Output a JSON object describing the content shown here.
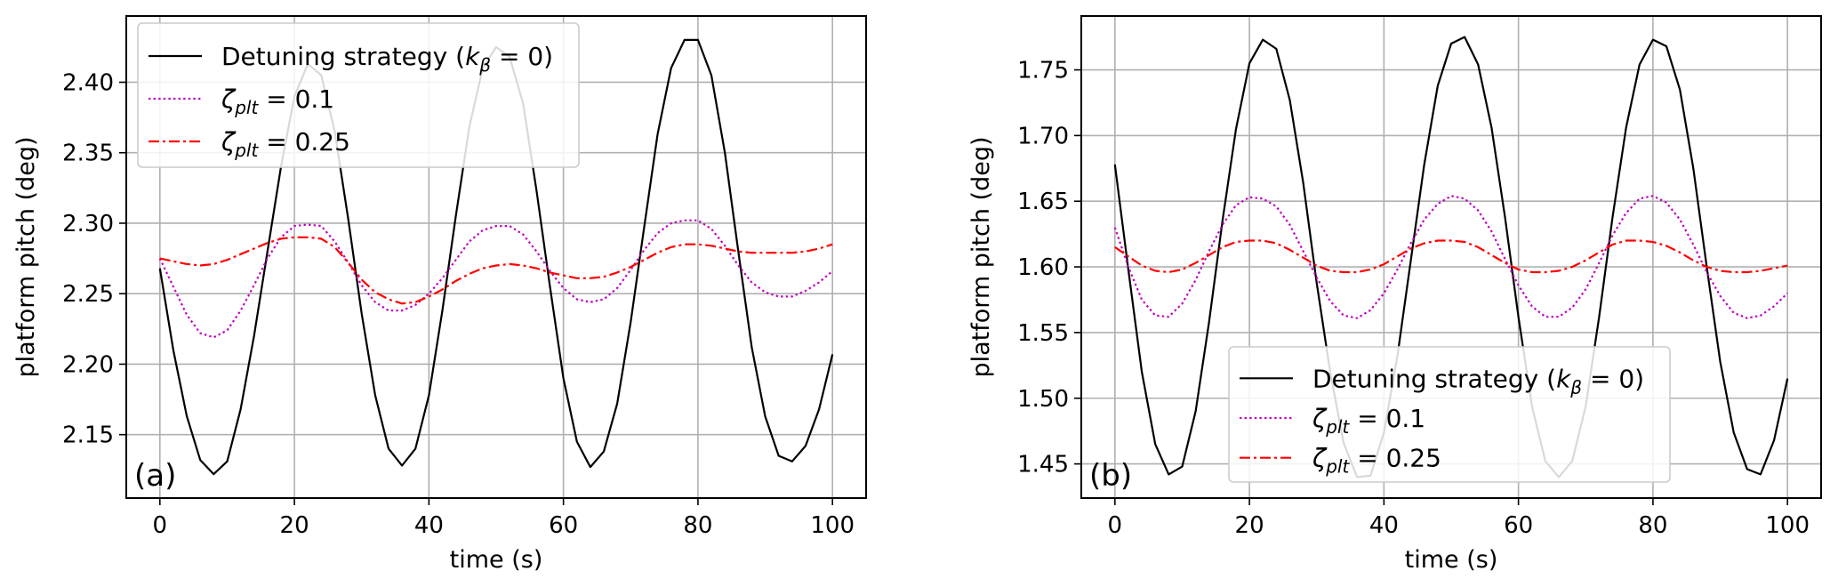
{
  "chart_data": [
    {
      "type": "line",
      "panel_label": "(a)",
      "xlabel": "time (s)",
      "ylabel": "platform pitch (deg)",
      "xlim": [
        -5,
        105
      ],
      "ylim": [
        2.105,
        2.447
      ],
      "xticks": [
        0,
        20,
        40,
        60,
        80,
        100
      ],
      "yticks": [
        2.15,
        2.2,
        2.25,
        2.3,
        2.35,
        2.4
      ],
      "grid": true,
      "legend_position": "upper-left",
      "series": [
        {
          "name_main": "Detuning strategy (",
          "name_sym": "k",
          "name_sub": "β",
          "name_tail": " = 0)",
          "color": "#000000",
          "dash": "solid",
          "x": [
            0,
            2,
            4,
            6,
            8,
            10,
            12,
            14,
            16,
            18,
            20,
            22,
            24,
            26,
            28,
            30,
            32,
            34,
            36,
            38,
            40,
            42,
            44,
            46,
            48,
            50,
            52,
            54,
            56,
            58,
            60,
            62,
            64,
            66,
            68,
            70,
            72,
            74,
            76,
            78,
            80,
            82,
            84,
            86,
            88,
            90,
            92,
            94,
            96,
            98,
            100
          ],
          "y": [
            2.268,
            2.21,
            2.163,
            2.132,
            2.122,
            2.131,
            2.168,
            2.22,
            2.28,
            2.34,
            2.39,
            2.413,
            2.405,
            2.365,
            2.303,
            2.236,
            2.178,
            2.14,
            2.128,
            2.14,
            2.178,
            2.238,
            2.305,
            2.368,
            2.41,
            2.425,
            2.418,
            2.385,
            2.323,
            2.255,
            2.19,
            2.145,
            2.127,
            2.138,
            2.172,
            2.23,
            2.297,
            2.363,
            2.41,
            2.43,
            2.43,
            2.405,
            2.35,
            2.28,
            2.212,
            2.163,
            2.135,
            2.131,
            2.142,
            2.168,
            2.207
          ]
        },
        {
          "name_sym": "ζ",
          "name_sub": "plt",
          "name_tail": " = 0.1",
          "color": "#c000c0",
          "dash": "dotted",
          "x": [
            0,
            2,
            4,
            6,
            8,
            10,
            12,
            14,
            16,
            18,
            20,
            22,
            24,
            26,
            28,
            30,
            32,
            34,
            36,
            38,
            40,
            42,
            44,
            46,
            48,
            50,
            52,
            54,
            56,
            58,
            60,
            62,
            64,
            66,
            68,
            70,
            72,
            74,
            76,
            78,
            80,
            82,
            84,
            86,
            88,
            90,
            92,
            94,
            96,
            98,
            100
          ],
          "y": [
            2.275,
            2.255,
            2.235,
            2.222,
            2.219,
            2.224,
            2.238,
            2.256,
            2.275,
            2.29,
            2.298,
            2.299,
            2.298,
            2.287,
            2.272,
            2.256,
            2.244,
            2.238,
            2.238,
            2.242,
            2.25,
            2.261,
            2.274,
            2.287,
            2.295,
            2.298,
            2.298,
            2.292,
            2.28,
            2.266,
            2.254,
            2.246,
            2.244,
            2.246,
            2.254,
            2.267,
            2.281,
            2.293,
            2.3,
            2.302,
            2.302,
            2.296,
            2.284,
            2.27,
            2.258,
            2.251,
            2.248,
            2.248,
            2.252,
            2.258,
            2.266
          ]
        },
        {
          "name_sym": "ζ",
          "name_sub": "plt",
          "name_tail": " = 0.25",
          "color": "#ff0000",
          "dash": "dashdot",
          "x": [
            0,
            2,
            4,
            6,
            8,
            10,
            12,
            14,
            16,
            18,
            20,
            22,
            24,
            26,
            28,
            30,
            32,
            34,
            36,
            38,
            40,
            42,
            44,
            46,
            48,
            50,
            52,
            54,
            56,
            58,
            60,
            62,
            64,
            66,
            68,
            70,
            72,
            74,
            76,
            78,
            80,
            82,
            84,
            86,
            88,
            90,
            92,
            94,
            96,
            98,
            100
          ],
          "y": [
            2.275,
            2.273,
            2.271,
            2.27,
            2.271,
            2.274,
            2.278,
            2.282,
            2.286,
            2.289,
            2.29,
            2.29,
            2.289,
            2.283,
            2.272,
            2.26,
            2.251,
            2.246,
            2.243,
            2.244,
            2.248,
            2.253,
            2.259,
            2.264,
            2.268,
            2.27,
            2.271,
            2.27,
            2.268,
            2.265,
            2.263,
            2.261,
            2.261,
            2.262,
            2.265,
            2.269,
            2.274,
            2.279,
            2.283,
            2.285,
            2.285,
            2.284,
            2.282,
            2.28,
            2.279,
            2.279,
            2.279,
            2.279,
            2.28,
            2.282,
            2.285
          ]
        }
      ]
    },
    {
      "type": "line",
      "panel_label": "(b)",
      "xlabel": "time (s)",
      "ylabel": "platform pitch (deg)",
      "xlim": [
        -5,
        105
      ],
      "ylim": [
        1.424,
        1.791
      ],
      "xticks": [
        0,
        20,
        40,
        60,
        80,
        100
      ],
      "yticks": [
        1.45,
        1.5,
        1.55,
        1.6,
        1.65,
        1.7,
        1.75
      ],
      "grid": true,
      "legend_position": "lower-center",
      "series": [
        {
          "name_main": "Detuning strategy (",
          "name_sym": "k",
          "name_sub": "β",
          "name_tail": " = 0)",
          "color": "#000000",
          "dash": "solid",
          "x": [
            0,
            2,
            4,
            6,
            8,
            10,
            12,
            14,
            16,
            18,
            20,
            22,
            24,
            26,
            28,
            30,
            32,
            34,
            36,
            38,
            40,
            42,
            44,
            46,
            48,
            50,
            52,
            54,
            56,
            58,
            60,
            62,
            64,
            66,
            68,
            70,
            72,
            74,
            76,
            78,
            80,
            82,
            84,
            86,
            88,
            90,
            92,
            94,
            96,
            98,
            100
          ],
          "y": [
            1.678,
            1.598,
            1.52,
            1.465,
            1.442,
            1.448,
            1.49,
            1.558,
            1.635,
            1.705,
            1.755,
            1.773,
            1.766,
            1.727,
            1.664,
            1.588,
            1.52,
            1.466,
            1.44,
            1.441,
            1.474,
            1.532,
            1.605,
            1.678,
            1.738,
            1.77,
            1.775,
            1.754,
            1.706,
            1.638,
            1.562,
            1.494,
            1.452,
            1.44,
            1.452,
            1.494,
            1.562,
            1.638,
            1.706,
            1.754,
            1.773,
            1.768,
            1.735,
            1.675,
            1.6,
            1.528,
            1.474,
            1.446,
            1.442,
            1.468,
            1.515
          ]
        },
        {
          "name_sym": "ζ",
          "name_sub": "plt",
          "name_tail": " = 0.1",
          "color": "#c000c0",
          "dash": "dotted",
          "x": [
            0,
            2,
            4,
            6,
            8,
            10,
            12,
            14,
            16,
            18,
            20,
            22,
            24,
            26,
            28,
            30,
            32,
            34,
            36,
            38,
            40,
            42,
            44,
            46,
            48,
            50,
            52,
            54,
            56,
            58,
            60,
            62,
            64,
            66,
            68,
            70,
            72,
            74,
            76,
            78,
            80,
            82,
            84,
            86,
            88,
            90,
            92,
            94,
            96,
            98,
            100
          ],
          "y": [
            1.63,
            1.6,
            1.575,
            1.563,
            1.562,
            1.572,
            1.59,
            1.612,
            1.632,
            1.647,
            1.653,
            1.652,
            1.646,
            1.632,
            1.612,
            1.592,
            1.574,
            1.563,
            1.561,
            1.567,
            1.58,
            1.598,
            1.618,
            1.636,
            1.648,
            1.654,
            1.652,
            1.643,
            1.627,
            1.606,
            1.586,
            1.57,
            1.562,
            1.562,
            1.569,
            1.583,
            1.603,
            1.624,
            1.641,
            1.652,
            1.654,
            1.649,
            1.636,
            1.617,
            1.596,
            1.578,
            1.565,
            1.561,
            1.563,
            1.57,
            1.58
          ]
        },
        {
          "name_sym": "ζ",
          "name_sub": "plt",
          "name_tail": " = 0.25",
          "color": "#ff0000",
          "dash": "dashdot",
          "x": [
            0,
            2,
            4,
            6,
            8,
            10,
            12,
            14,
            16,
            18,
            20,
            22,
            24,
            26,
            28,
            30,
            32,
            34,
            36,
            38,
            40,
            42,
            44,
            46,
            48,
            50,
            52,
            54,
            56,
            58,
            60,
            62,
            64,
            66,
            68,
            70,
            72,
            74,
            76,
            78,
            80,
            82,
            84,
            86,
            88,
            90,
            92,
            94,
            96,
            98,
            100
          ],
          "y": [
            1.615,
            1.608,
            1.601,
            1.597,
            1.596,
            1.598,
            1.603,
            1.609,
            1.615,
            1.619,
            1.62,
            1.62,
            1.618,
            1.613,
            1.607,
            1.601,
            1.597,
            1.596,
            1.596,
            1.598,
            1.602,
            1.608,
            1.614,
            1.618,
            1.62,
            1.62,
            1.619,
            1.615,
            1.609,
            1.603,
            1.598,
            1.596,
            1.596,
            1.597,
            1.6,
            1.605,
            1.611,
            1.617,
            1.62,
            1.62,
            1.619,
            1.616,
            1.611,
            1.605,
            1.6,
            1.597,
            1.596,
            1.596,
            1.597,
            1.599,
            1.601
          ]
        }
      ]
    }
  ]
}
